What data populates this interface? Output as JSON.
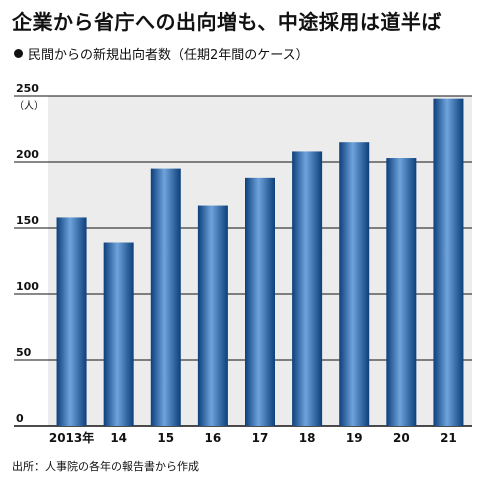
{
  "title": "企業から省庁への出向増も、中途採用は道半ば",
  "subtitle": "民間からの新規出向者数（任期2年間のケース）",
  "source": "出所：人事院の各年の報告書から作成",
  "colors": {
    "bar_dark": "#0d3f7a",
    "bar_mid": "#2e6fb5",
    "bar_light": "#6ea3dc",
    "plot_bg": "#ececec",
    "grid": "#111111"
  },
  "chart_data": {
    "type": "bar",
    "title": "企業から省庁への出向増も、中途採用は道半ば",
    "subtitle": "民間からの新規出向者数（任期2年間のケース）",
    "y_unit": "（人）",
    "categories": [
      "2013年",
      "14",
      "15",
      "16",
      "17",
      "18",
      "19",
      "20",
      "21"
    ],
    "values": [
      158,
      139,
      195,
      167,
      188,
      208,
      215,
      203,
      248
    ],
    "ylim": [
      0,
      250
    ],
    "yticks": [
      0,
      50,
      100,
      150,
      200,
      250
    ],
    "grid": true,
    "legend": "none"
  }
}
